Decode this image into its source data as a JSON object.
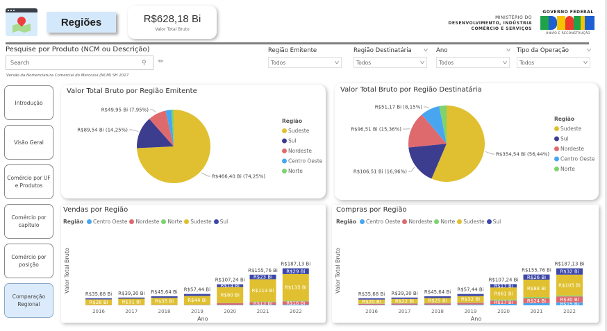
{
  "header": {
    "page_title": "Regiões",
    "kpi": {
      "value": "R$628,18 Bi",
      "label": "Valor Total Bruto"
    },
    "ministry": {
      "line1": "MINISTÉRIO DO",
      "line2": "DESENVOLVIMENTO, INDÚSTRIA",
      "line3": "COMÉRCIO E SERVIÇOS"
    },
    "gov_logo": {
      "top": "GOVERNO FEDERAL",
      "brand": "BRASIL",
      "bottom": "UNIÃO E RECONSTRUÇÃO"
    }
  },
  "search": {
    "title": "Pesquise por Produto (NCM ou Descrição)",
    "placeholder": "Search",
    "note": "Versão da Nomenclatura Comercial do Mercosul (NCM) SH 2017",
    "search_icon": "search-icon",
    "eraser_icon": "eraser-icon"
  },
  "slicers": [
    {
      "label": "Região Emitente",
      "value": "Todos"
    },
    {
      "label": "Região Destinatária",
      "value": "Todos"
    },
    {
      "label": "Ano",
      "value": "Todos"
    },
    {
      "label": "Tipo da Operação",
      "value": "Todos"
    }
  ],
  "nav": [
    {
      "label": "Introdução",
      "active": false
    },
    {
      "label": "Visão Geral",
      "active": false
    },
    {
      "label": "Comércio por UF e Produtos",
      "active": false
    },
    {
      "label": "Comércio por capítulo",
      "active": false
    },
    {
      "label": "Comércio por posição",
      "active": false
    },
    {
      "label": "Comparação Regional",
      "active": true
    }
  ],
  "colors": {
    "Sudeste": "#E0C030",
    "Sul": "#3D3D8F",
    "Nordeste": "#DF6A6E",
    "Centro Oeste": "#48A6F0",
    "Norte": "#7ED36F",
    "Sul_bar": "#3C48A8"
  },
  "chart_data": [
    {
      "type": "pie",
      "title": "Valor Total Bruto por Região Emitente",
      "legend_title": "Região",
      "legend_position": "right",
      "legend": [
        "Sudeste",
        "Sul",
        "Nordeste",
        "Centro Oeste",
        "Norte"
      ],
      "slices": [
        {
          "name": "Sudeste",
          "value": 466.4,
          "pct": 74.25,
          "label": "R$466,40 Bi (74,25%)"
        },
        {
          "name": "Sul",
          "value": 89.54,
          "pct": 14.25,
          "label": "R$89,54 Bi (14,25%)"
        },
        {
          "name": "Nordeste",
          "value": 49.95,
          "pct": 7.95,
          "label": "R$49,95 Bi (7,95%)"
        },
        {
          "name": "Centro Oeste",
          "value": 16.5,
          "pct": 2.63,
          "label": ""
        },
        {
          "name": "Norte",
          "value": 5.8,
          "pct": 0.92,
          "label": ""
        }
      ]
    },
    {
      "type": "pie",
      "title": "Valor Total Bruto por Região Destinatária",
      "legend_title": "Região",
      "legend_position": "right",
      "legend": [
        "Sudeste",
        "Sul",
        "Nordeste",
        "Centro Oeste",
        "Norte"
      ],
      "slices": [
        {
          "name": "Sudeste",
          "value": 354.54,
          "pct": 56.44,
          "label": "R$354,54 Bi (56,44%)"
        },
        {
          "name": "Sul",
          "value": 106.51,
          "pct": 16.96,
          "label": "R$106,51 Bi (16,96%)"
        },
        {
          "name": "Nordeste",
          "value": 96.51,
          "pct": 15.36,
          "label": "R$96,51 Bi (15,36%)"
        },
        {
          "name": "Centro Oeste",
          "value": 51.17,
          "pct": 8.15,
          "label": "R$51,17 Bi (8,15%)"
        },
        {
          "name": "Norte",
          "value": 19.45,
          "pct": 3.09,
          "label": ""
        }
      ]
    },
    {
      "type": "bar",
      "stacked": true,
      "title": "Vendas por Região",
      "legend_title": "Região",
      "legend_position": "top-left",
      "legend": [
        "Centro Oeste",
        "Nordeste",
        "Norte",
        "Sudeste",
        "Sul"
      ],
      "xlabel": "Ano",
      "ylabel": "Valor Total Bruto",
      "categories": [
        "2016",
        "2017",
        "2018",
        "2019",
        "2020",
        "2021",
        "2022"
      ],
      "totals": [
        35.68,
        39.3,
        45.64,
        57.44,
        107.24,
        155.76,
        187.13
      ],
      "total_labels": [
        "R$35,68 Bi",
        "R$39,30 Bi",
        "R$45,64 Bi",
        "R$57,44 Bi",
        "R$107,24 Bi",
        "R$155,76 Bi",
        "R$187,13 Bi"
      ],
      "series": [
        {
          "name": "Centro Oeste",
          "values": [
            0.6,
            0.7,
            0.8,
            1.0,
            2.5,
            3.5,
            4.0
          ],
          "labels": [
            "",
            "",
            "",
            "",
            "",
            "",
            ""
          ]
        },
        {
          "name": "Nordeste",
          "values": [
            1.2,
            1.3,
            1.6,
            2.0,
            8.5,
            13,
            16
          ],
          "labels": [
            "",
            "",
            "",
            "",
            "",
            "R$13 Bi",
            "R$16 Bi"
          ]
        },
        {
          "name": "Norte",
          "values": [
            0.3,
            0.4,
            0.5,
            0.6,
            1.3,
            2.5,
            3.1
          ],
          "labels": [
            "",
            "",
            "",
            "",
            "",
            "",
            ""
          ]
        },
        {
          "name": "Sudeste",
          "values": [
            28,
            31,
            35,
            44,
            80,
            113,
            135
          ],
          "labels": [
            "R$28 Bi",
            "R$31 Bi",
            "R$35 Bi",
            "R$44 Bi",
            "R$80 Bi",
            "R$113 Bi",
            "R$135 Bi"
          ]
        },
        {
          "name": "Sul",
          "values": [
            5.6,
            5.9,
            7.7,
            9.8,
            14,
            23,
            29
          ],
          "labels": [
            "",
            "",
            "",
            "",
            "R$14 Bi",
            "R$23 Bi",
            "R$29 Bi"
          ]
        }
      ]
    },
    {
      "type": "bar",
      "stacked": true,
      "title": "Compras por Região",
      "legend_title": "Região",
      "legend_position": "top-left",
      "legend": [
        "Centro Oeste",
        "Nordeste",
        "Norte",
        "Sudeste",
        "Sul"
      ],
      "xlabel": "Ano",
      "ylabel": "Valor Total Bruto",
      "categories": [
        "2016",
        "2017",
        "2018",
        "2019",
        "2020",
        "2021",
        "2022"
      ],
      "totals": [
        35.68,
        39.3,
        45.64,
        57.44,
        107.24,
        155.76,
        187.13
      ],
      "total_labels": [
        "R$35,68 Bi",
        "R$39,30 Bi",
        "R$45,64 Bi",
        "R$57,44 Bi",
        "R$107,24 Bi",
        "R$155,76 Bi",
        "R$187,13 Bi"
      ],
      "series": [
        {
          "name": "Centro Oeste",
          "values": [
            2.5,
            2.8,
            3.2,
            4.2,
            7,
            11,
            15
          ],
          "labels": [
            "",
            "",
            "",
            "",
            "",
            "",
            "R$15 Bi"
          ]
        },
        {
          "name": "Nordeste",
          "values": [
            5.5,
            6.2,
            7.0,
            8.5,
            17,
            24,
            30
          ],
          "labels": [
            "",
            "",
            "",
            "",
            "R$17 Bi",
            "R$24 Bi",
            "R$30 Bi"
          ]
        },
        {
          "name": "Norte",
          "values": [
            1.2,
            1.4,
            1.7,
            2.2,
            5.2,
            6.8,
            5.1
          ],
          "labels": [
            "",
            "",
            "",
            "",
            "",
            "",
            ""
          ]
        },
        {
          "name": "Sudeste",
          "values": [
            20,
            22,
            25,
            32,
            61,
            88,
            105
          ],
          "labels": [
            "R$20 Bi",
            "R$22 Bi",
            "R$25 Bi",
            "R$32 Bi",
            "R$61 Bi",
            "R$88 Bi",
            "R$105 Bi"
          ]
        },
        {
          "name": "Sul",
          "values": [
            6.5,
            6.9,
            8.7,
            10.5,
            17,
            26,
            32
          ],
          "labels": [
            "",
            "",
            "",
            "",
            "R$17 Bi",
            "R$26 Bi",
            "R$32 Bi"
          ]
        }
      ]
    }
  ]
}
